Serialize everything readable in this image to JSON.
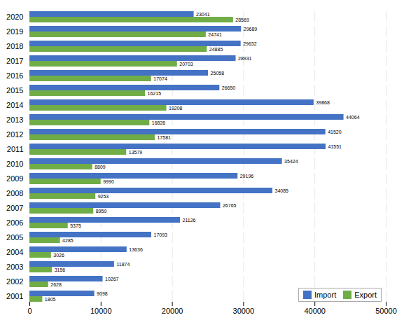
{
  "chart_data": {
    "type": "bar",
    "orientation": "horizontal",
    "categories": [
      "2001",
      "2002",
      "2003",
      "2004",
      "2005",
      "2006",
      "2007",
      "2008",
      "2009",
      "2010",
      "2011",
      "2012",
      "2013",
      "2014",
      "2015",
      "2016",
      "2017",
      "2018",
      "2019",
      "2020"
    ],
    "series": [
      {
        "name": "Import",
        "color": "#4472c4",
        "values": [
          9098,
          10267,
          11874,
          13636,
          17093,
          21126,
          26765,
          34085,
          29196,
          35424,
          41551,
          41520,
          44064,
          39868,
          26650,
          25058,
          28931,
          29632,
          29689,
          23041
        ]
      },
      {
        "name": "Export",
        "color": "#70ad47",
        "values": [
          1805,
          2628,
          3156,
          3026,
          4285,
          5375,
          8959,
          9253,
          9990,
          8809,
          13579,
          17581,
          16826,
          19208,
          16215,
          17074,
          20703,
          24885,
          24741,
          28569
        ]
      }
    ],
    "xlim": [
      0,
      50000
    ],
    "xticks": [
      0,
      10000,
      20000,
      30000,
      40000,
      50000
    ],
    "grid": true,
    "legend": "lower right",
    "data_labels": true
  }
}
